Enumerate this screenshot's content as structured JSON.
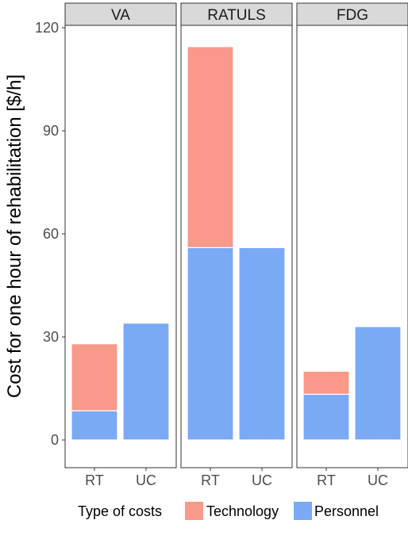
{
  "chart_data": {
    "type": "bar",
    "stacked": true,
    "panels": [
      {
        "name": "VA",
        "categories": [
          "RT",
          "UC"
        ],
        "series": [
          {
            "name": "Personnel",
            "values": [
              8.5,
              34
            ]
          },
          {
            "name": "Technology",
            "values": [
              19.5,
              0
            ]
          }
        ]
      },
      {
        "name": "RATULS",
        "categories": [
          "RT",
          "UC"
        ],
        "series": [
          {
            "name": "Personnel",
            "values": [
              56,
              56
            ]
          },
          {
            "name": "Technology",
            "values": [
              58.5,
              0
            ]
          }
        ]
      },
      {
        "name": "FDG",
        "categories": [
          "RT",
          "UC"
        ],
        "series": [
          {
            "name": "Personnel",
            "values": [
              13.3,
              33
            ]
          },
          {
            "name": "Technology",
            "values": [
              6.7,
              0
            ]
          }
        ]
      }
    ],
    "ylabel": "Cost for one hour of rehabilitation [$/h]",
    "xlabel": "",
    "ylim": [
      0,
      120
    ],
    "yticks": [
      0,
      30,
      60,
      90,
      120
    ],
    "grid": false,
    "legend": {
      "title": "Type of costs",
      "entries": [
        "Technology",
        "Personnel"
      ],
      "placement": "bottom"
    },
    "colors": {
      "Technology": "#f8998a",
      "Personnel": "#7aaaf5"
    }
  }
}
